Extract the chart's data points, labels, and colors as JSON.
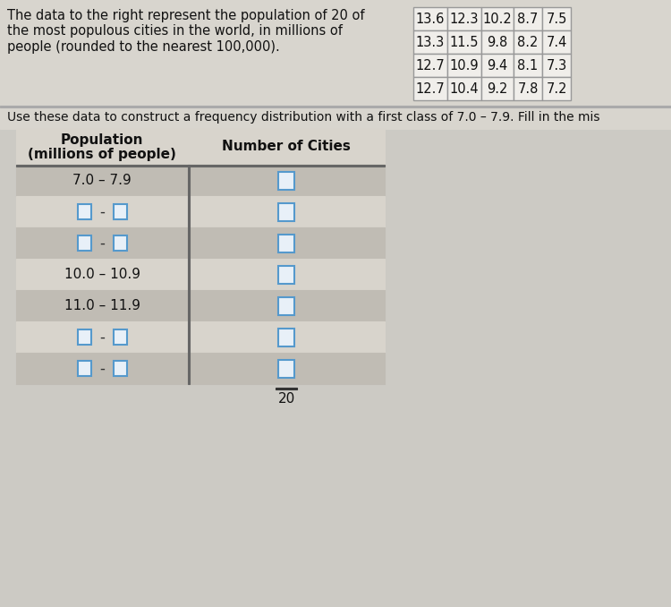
{
  "bg_color": "#cccac4",
  "top_section_color": "#d8d5ce",
  "top_text": "The data to the right represent the population of 20 of\nthe most populous cities in the world, in millions of\npeople (rounded to the nearest 100,000).",
  "instruction_text": "Use these data to construct a frequency distribution with a first class of 7.0 – 7.9. Fill in the mis",
  "data_table": [
    [
      "13.6",
      "12.3",
      "10.2",
      "8.7",
      "7.5"
    ],
    [
      "13.3",
      "11.5",
      "9.8",
      "8.2",
      "7.4"
    ],
    [
      "12.7",
      "10.9",
      "9.4",
      "8.1",
      "7.3"
    ],
    [
      "12.7",
      "10.4",
      "9.2",
      "7.8",
      "7.2"
    ]
  ],
  "rows": [
    {
      "label": "7.0 – 7.9",
      "has_boxes_left": false,
      "shaded": true
    },
    {
      "label": "box-dash-box",
      "has_boxes_left": true,
      "shaded": false
    },
    {
      "label": "box-dash-box",
      "has_boxes_left": true,
      "shaded": true
    },
    {
      "label": "10.0 – 10.9",
      "has_boxes_left": false,
      "shaded": false
    },
    {
      "label": "11.0 – 11.9",
      "has_boxes_left": false,
      "shaded": true
    },
    {
      "label": "box-dash-box",
      "has_boxes_left": true,
      "shaded": false
    },
    {
      "label": "box-dash-box",
      "has_boxes_left": true,
      "shaded": true
    }
  ],
  "total_label": "20",
  "shaded_row_color": "#c0bcb4",
  "white_row_color": "#d8d4cc",
  "text_color": "#111111",
  "box_stroke_color": "#5599cc",
  "box_face_color": "#e8f0f8",
  "separator_line_color": "#888888",
  "table_border_color": "#666666"
}
